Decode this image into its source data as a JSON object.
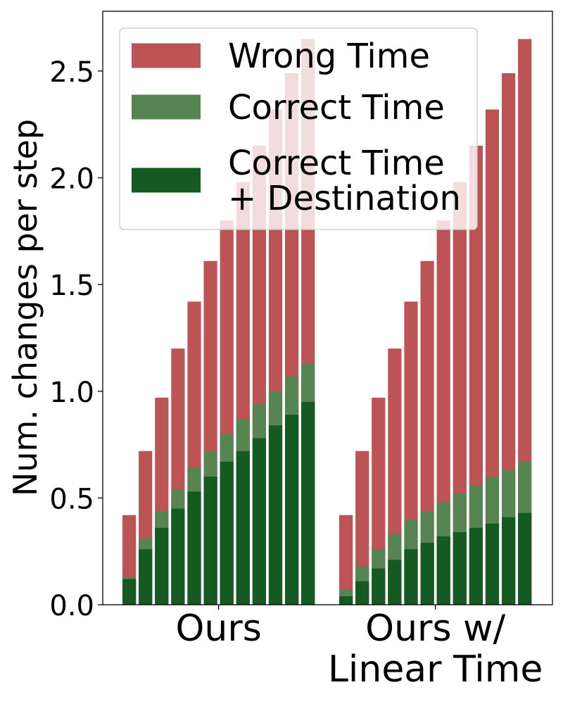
{
  "chart_data": {
    "type": "bar",
    "stacked": true,
    "ylabel": "Num. changes per step",
    "ylim": [
      0,
      2.78
    ],
    "yticks": [
      "0.0",
      "0.5",
      "1.0",
      "1.5",
      "2.0",
      "2.5"
    ],
    "ytick_values": [
      0,
      0.5,
      1.0,
      1.5,
      2.0,
      2.5
    ],
    "groups": [
      {
        "label_lines": [
          "Ours"
        ],
        "bar_count": 12
      },
      {
        "label_lines": [
          "Ours w/",
          "Linear Time"
        ],
        "bar_count": 12
      }
    ],
    "legend": {
      "placement": "top-left",
      "entries": [
        {
          "key": "wrong",
          "lines": [
            "Wrong Time"
          ]
        },
        {
          "key": "correct",
          "lines": [
            "Correct Time"
          ]
        },
        {
          "key": "dest",
          "lines": [
            "Correct Time",
            "+ Destination"
          ]
        }
      ]
    },
    "colors": {
      "wrong": "#bc5355",
      "correct": "#568551",
      "dest": "#155a21"
    },
    "series": [
      {
        "name": "Correct Time + Destination",
        "key": "dest",
        "groups": [
          [
            0.12,
            0.26,
            0.36,
            0.45,
            0.53,
            0.6,
            0.67,
            0.72,
            0.78,
            0.84,
            0.89,
            0.95
          ],
          [
            0.04,
            0.11,
            0.17,
            0.21,
            0.26,
            0.29,
            0.32,
            0.34,
            0.36,
            0.38,
            0.41,
            0.43
          ]
        ]
      },
      {
        "name": "Correct Time",
        "key": "correct",
        "groups": [
          [
            0.13,
            0.31,
            0.44,
            0.54,
            0.64,
            0.72,
            0.8,
            0.87,
            0.94,
            1.0,
            1.07,
            1.13
          ],
          [
            0.07,
            0.18,
            0.26,
            0.33,
            0.4,
            0.44,
            0.48,
            0.52,
            0.56,
            0.6,
            0.63,
            0.67
          ]
        ]
      },
      {
        "name": "Wrong Time",
        "key": "wrong",
        "groups": [
          [
            0.42,
            0.72,
            0.97,
            1.2,
            1.42,
            1.61,
            1.8,
            1.98,
            2.15,
            2.32,
            2.49,
            2.65
          ],
          [
            0.42,
            0.72,
            0.97,
            1.2,
            1.42,
            1.61,
            1.8,
            1.98,
            2.15,
            2.32,
            2.49,
            2.65
          ]
        ]
      }
    ]
  }
}
